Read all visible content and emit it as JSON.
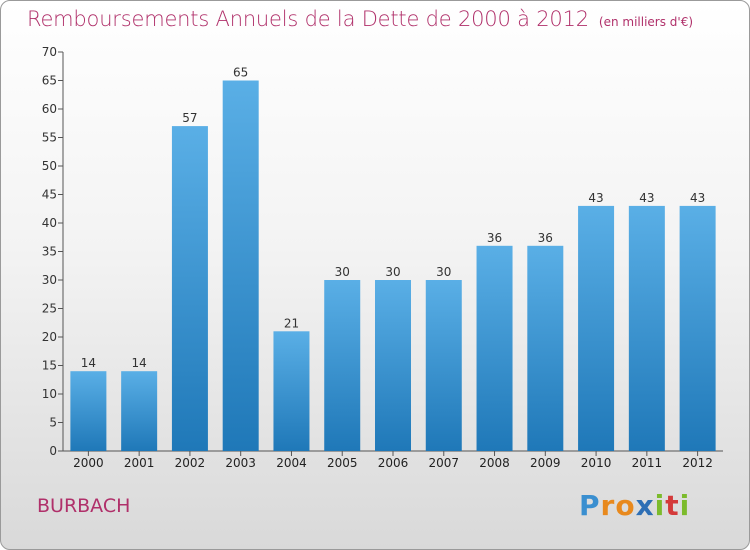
{
  "header": {
    "title": "Remboursements Annuels de la Dette de 2000 à 2012",
    "unit": "(en milliers d'€)"
  },
  "footer": {
    "city": "BURBACH",
    "logo": [
      "P",
      "r",
      "o",
      "x",
      "i",
      "t",
      "i"
    ],
    "logo_colors": [
      "#3a8fd0",
      "#e8891d",
      "#e8891d",
      "#2e6fb5",
      "#7cbb2c",
      "#d43a3a",
      "#7cbb2c"
    ]
  },
  "colors": {
    "accent": "#b0306a",
    "bar_light": "#5aafe6",
    "bar_dark": "#1f78b8"
  },
  "chart_data": {
    "type": "bar",
    "title": "Remboursements Annuels de la Dette de 2000 à 2012",
    "subtitle": "(en milliers d'€)",
    "categories": [
      "2000",
      "2001",
      "2002",
      "2003",
      "2004",
      "2005",
      "2006",
      "2007",
      "2008",
      "2009",
      "2010",
      "2011",
      "2012"
    ],
    "values": [
      14,
      14,
      57,
      65,
      21,
      30,
      30,
      30,
      36,
      36,
      43,
      43,
      43
    ],
    "ylim": [
      0,
      70
    ],
    "yticks": [
      0,
      5,
      10,
      15,
      20,
      25,
      30,
      35,
      40,
      45,
      50,
      55,
      60,
      65,
      70
    ],
    "grid": false,
    "xlabel": "",
    "ylabel": ""
  }
}
